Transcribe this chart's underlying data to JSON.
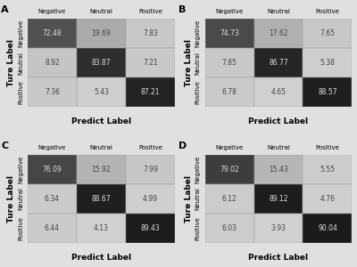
{
  "panels": [
    {
      "label": "A",
      "matrix": [
        [
          72.48,
          19.69,
          7.83
        ],
        [
          8.92,
          83.87,
          7.21
        ],
        [
          7.36,
          5.43,
          87.21
        ]
      ]
    },
    {
      "label": "B",
      "matrix": [
        [
          74.73,
          17.62,
          7.65
        ],
        [
          7.85,
          86.77,
          5.38
        ],
        [
          6.78,
          4.65,
          88.57
        ]
      ]
    },
    {
      "label": "C",
      "matrix": [
        [
          76.09,
          15.92,
          7.99
        ],
        [
          6.34,
          88.67,
          4.99
        ],
        [
          6.44,
          4.13,
          89.43
        ]
      ]
    },
    {
      "label": "D",
      "matrix": [
        [
          79.02,
          15.43,
          5.55
        ],
        [
          6.12,
          89.12,
          4.76
        ],
        [
          6.03,
          3.93,
          90.04
        ]
      ]
    }
  ],
  "tick_labels": [
    "Negative",
    "Neutral",
    "Positive"
  ],
  "xlabel": "Predict Label",
  "ylabel": "Ture Label",
  "background_color": "#e0e0e0",
  "cell_fontsize": 5.5,
  "label_fontsize": 6.5,
  "tick_fontsize": 5,
  "panel_label_fontsize": 8,
  "colors": {
    "diag_dark": 0.12,
    "diag_mid": 0.45,
    "offdiag_light_low": 0.82,
    "offdiag_light_high": 0.72
  }
}
